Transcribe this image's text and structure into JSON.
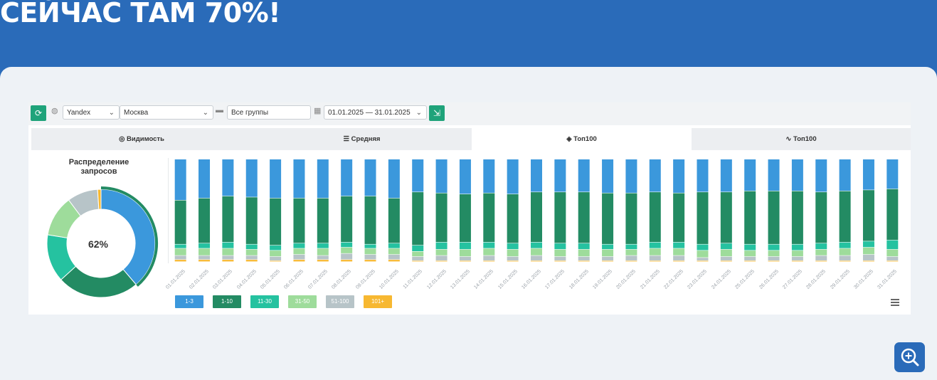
{
  "headline": "СЕЙЧАС ТАМ 70%!",
  "toolbar": {
    "engine": "Yandex",
    "region": "Москва",
    "groups": "Все группы",
    "dates": "01.01.2025 — 31.01.2025"
  },
  "tabs": [
    {
      "label": "Видимость",
      "icon": "glasses-icon"
    },
    {
      "label": "Средняя",
      "icon": "list-icon"
    },
    {
      "label": "Топ100",
      "icon": "layers-icon"
    },
    {
      "label": "Топ100",
      "icon": "trend-icon"
    }
  ],
  "sidebar": {
    "title_line1": "Распределение",
    "title_line2": "запросов",
    "percent": "62%"
  },
  "colors": {
    "c1_3": "#3b98dc",
    "c1_10": "#238b63",
    "c11_30": "#25c2a0",
    "c31_50": "#9edc9b",
    "c51_100": "#b7c4c8",
    "c101": "#f7b831"
  },
  "chart_data": {
    "type": "bar",
    "title": "Распределение запросов",
    "categories": [
      "01.01.2025",
      "02.01.2025",
      "03.01.2025",
      "04.01.2025",
      "05.01.2025",
      "06.01.2025",
      "07.01.2025",
      "08.01.2025",
      "09.01.2025",
      "10.01.2025",
      "11.01.2025",
      "12.01.2025",
      "13.01.2025",
      "14.01.2025",
      "15.01.2025",
      "16.01.2025",
      "17.01.2025",
      "18.01.2025",
      "19.01.2025",
      "20.01.2025",
      "21.01.2025",
      "22.01.2025",
      "23.01.2025",
      "24.01.2025",
      "25.01.2025",
      "26.01.2025",
      "27.01.2025",
      "28.01.2025",
      "29.01.2025",
      "30.01.2025",
      "31.01.2025"
    ],
    "series": [
      {
        "name": "1-3",
        "values": [
          40,
          38,
          36,
          37,
          38,
          38,
          38,
          36,
          36,
          38,
          32,
          33,
          34,
          33,
          34,
          32,
          32,
          32,
          33,
          33,
          32,
          33,
          32,
          32,
          31,
          31,
          31,
          32,
          31,
          30,
          29
        ]
      },
      {
        "name": "1-10",
        "values": [
          43,
          44,
          45,
          46,
          46,
          44,
          44,
          45,
          47,
          44,
          52,
          48,
          47,
          48,
          48,
          49,
          50,
          50,
          50,
          50,
          49,
          48,
          51,
          50,
          52,
          52,
          52,
          50,
          50,
          50,
          50
        ]
      },
      {
        "name": "11-30",
        "values": [
          4,
          5,
          6,
          5,
          5,
          5,
          5,
          5,
          4,
          5,
          6,
          7,
          7,
          6,
          6,
          6,
          6,
          6,
          5,
          5,
          6,
          6,
          6,
          6,
          6,
          6,
          6,
          6,
          6,
          6,
          9
        ]
      },
      {
        "name": "31-50",
        "values": [
          7,
          7,
          7,
          6,
          6,
          6,
          7,
          6,
          6,
          6,
          5,
          6,
          7,
          7,
          7,
          7,
          7,
          7,
          7,
          6,
          7,
          7,
          7,
          7,
          6,
          6,
          6,
          6,
          7,
          7,
          7
        ]
      },
      {
        "name": "51-100",
        "values": [
          4,
          4,
          4,
          4,
          4,
          5,
          4,
          6,
          5,
          5,
          4,
          5,
          4,
          5,
          4,
          5,
          4,
          4,
          4,
          5,
          5,
          5,
          3,
          4,
          4,
          4,
          4,
          5,
          5,
          6,
          4
        ]
      },
      {
        "name": "101+",
        "values": [
          2,
          2,
          2,
          2,
          1,
          2,
          2,
          2,
          2,
          2,
          1,
          1,
          1,
          1,
          1,
          1,
          1,
          1,
          1,
          1,
          1,
          1,
          1,
          1,
          1,
          1,
          1,
          1,
          1,
          1,
          1
        ]
      }
    ],
    "ylim": [
      0,
      100
    ],
    "donut": {
      "labels": [
        "1-3",
        "1-10",
        "11-30",
        "31-50",
        "51-100",
        "101+"
      ],
      "values": [
        38,
        24,
        14,
        12,
        9,
        1
      ]
    },
    "legend": [
      "1-3",
      "1-10",
      "11-30",
      "31-50",
      "51-100",
      "101+"
    ]
  }
}
